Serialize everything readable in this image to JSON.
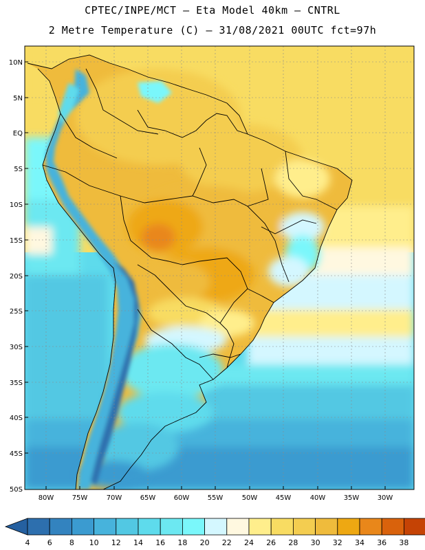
{
  "header": {
    "line1": "CPTEC/INPE/MCT –  Eta Model 40km – CNTRL",
    "line2": "2 Metre Temperature (C) – 31/08/2021 00UTC fct=97h"
  },
  "axes": {
    "lat_labels": [
      "10N",
      "5N",
      "EQ",
      "5S",
      "10S",
      "15S",
      "20S",
      "25S",
      "30S",
      "35S",
      "40S",
      "45S",
      "50S"
    ],
    "lon_labels": [
      "80W",
      "75W",
      "70W",
      "65W",
      "60W",
      "55W",
      "50W",
      "45W",
      "40W",
      "35W",
      "30W"
    ]
  },
  "colorbar": {
    "ticks": [
      "4",
      "6",
      "8",
      "10",
      "12",
      "14",
      "16",
      "18",
      "20",
      "22",
      "24",
      "26",
      "28",
      "30",
      "32",
      "34",
      "36",
      "38"
    ],
    "colors": [
      "#2d6fae",
      "#3383bf",
      "#3b9bd0",
      "#47b3dc",
      "#52c8e3",
      "#5edbec",
      "#6ce8f1",
      "#7af7fb",
      "#d4f7ff",
      "#fff8e0",
      "#ffee8c",
      "#f8dc62",
      "#f4cd50",
      "#efbb3c",
      "#eea812",
      "#e9871a",
      "#d9620c",
      "#c54305",
      "#b23a10"
    ],
    "under_color": "#2560a0",
    "over_color": "#b4451c"
  }
}
